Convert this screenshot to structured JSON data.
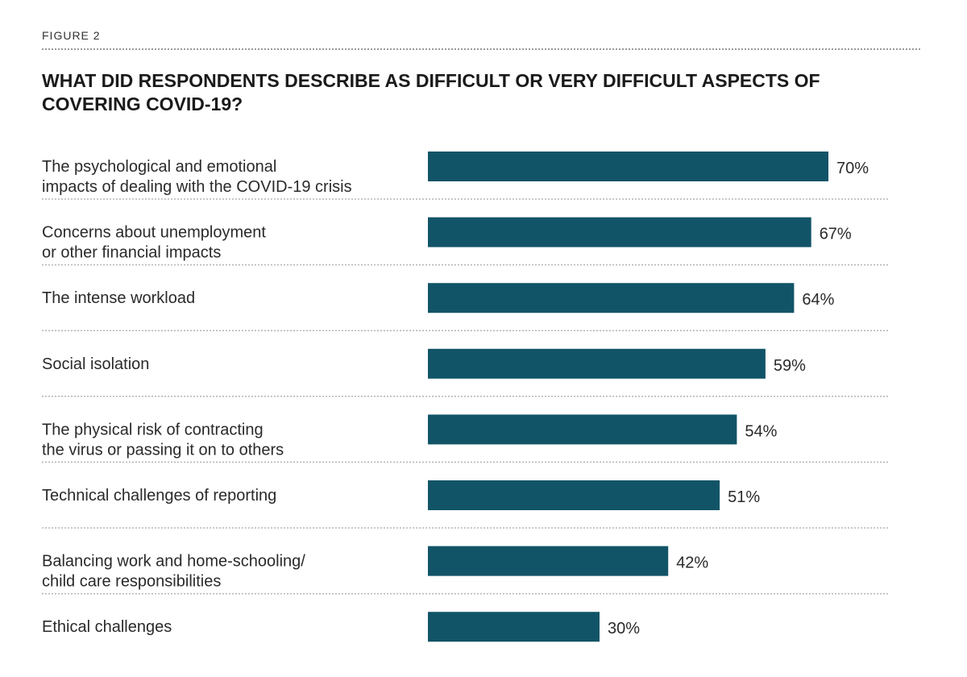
{
  "figure_label": "FIGURE 2",
  "colors": {
    "bar": "#125467",
    "separator": "#b5b5b5"
  },
  "chart_data": {
    "type": "bar",
    "orientation": "horizontal",
    "title": "WHAT DID RESPONDENTS DESCRIBE AS DIFFICULT OR VERY DIFFICULT ASPECTS OF COVERING COVID-19?",
    "categories": [
      [
        "The psychological and emotional",
        "impacts of dealing with the COVID-19 crisis"
      ],
      [
        "Concerns about unemployment",
        "or other financial impacts"
      ],
      [
        "The intense workload"
      ],
      [
        "Social isolation"
      ],
      [
        "The physical risk of contracting",
        "the virus or passing it on to others"
      ],
      [
        "Technical challenges of reporting"
      ],
      [
        "Balancing work and home-schooling/",
        "child care responsibilities"
      ],
      [
        "Ethical challenges"
      ]
    ],
    "values": [
      70,
      67,
      64,
      59,
      54,
      51,
      42,
      30
    ],
    "value_labels": [
      "70%",
      "67%",
      "64%",
      "59%",
      "54%",
      "51%",
      "42%",
      "30%"
    ],
    "unit": "%",
    "xlim": [
      0,
      100
    ],
    "grid": false,
    "legend": "none"
  }
}
